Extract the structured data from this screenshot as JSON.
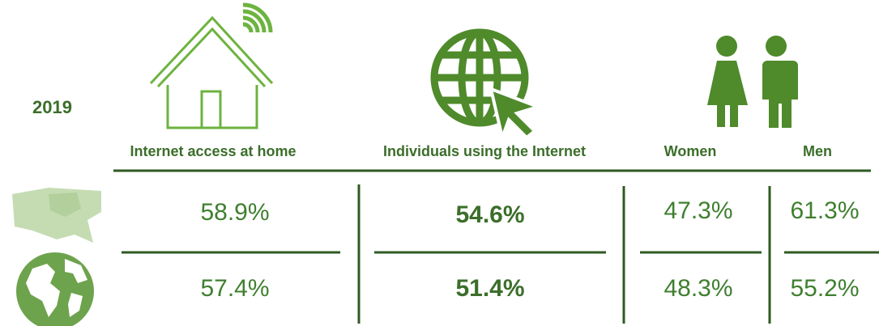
{
  "year": "2019",
  "table": {
    "header": [
      "Internet access at home",
      "Individuals using the Internet",
      "Women",
      "Men"
    ],
    "rows": [
      [
        "58.9%",
        "54.6%",
        "47.3%",
        "61.3%"
      ],
      [
        "57.4%",
        "51.4%",
        "48.3%",
        "55.2%"
      ]
    ]
  }
}
